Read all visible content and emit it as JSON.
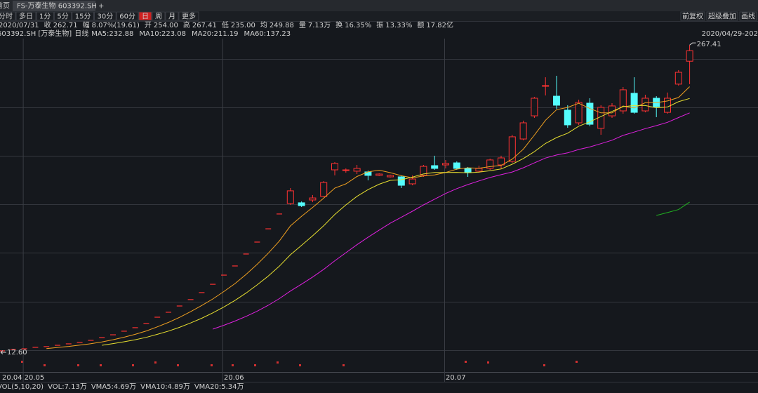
{
  "tabs": {
    "home": "首页",
    "active": "FS-万泰生物 603392.SH",
    "add": "+"
  },
  "periods": [
    {
      "label": "分时",
      "active": false
    },
    {
      "label": "多日",
      "active": false
    },
    {
      "label": "1分",
      "active": false
    },
    {
      "label": "5分",
      "active": false
    },
    {
      "label": "15分",
      "active": false
    },
    {
      "label": "30分",
      "active": false
    },
    {
      "label": "60分",
      "active": false
    },
    {
      "label": "日",
      "active": true
    },
    {
      "label": "周",
      "active": false
    },
    {
      "label": "月",
      "active": false
    },
    {
      "label": "更多",
      "active": false
    }
  ],
  "tools": [
    "前复权",
    "超级叠加",
    "画线"
  ],
  "quote": {
    "date": "2020/07/31",
    "items": [
      {
        "label": "收",
        "value": "262.71",
        "color": "#ff3c3c"
      },
      {
        "label": "幅",
        "value": "8.07%(19.61)",
        "color": "#ff3c3c"
      },
      {
        "label": "开",
        "value": "254.00",
        "color": "#ff3c3c"
      },
      {
        "label": "高",
        "value": "267.41",
        "color": "#ff3c3c"
      },
      {
        "label": "低",
        "value": "235.00",
        "color": "#2ee06a"
      },
      {
        "label": "均",
        "value": "249.88",
        "color": "#ff3c3c"
      },
      {
        "label": "量",
        "value": "7.13万",
        "color": "#e0e0e0"
      },
      {
        "label": "换",
        "value": "16.35%",
        "color": "#e0e0e0"
      },
      {
        "label": "振",
        "value": "13.33%",
        "color": "#e0e0e0"
      },
      {
        "label": "额",
        "value": "17.82亿",
        "color": "#e0e0e0"
      }
    ]
  },
  "chart_data": {
    "type": "candlestick",
    "title": "603392.SH [万泰生物]",
    "period": "日线",
    "date_range": "2020/04/29-202",
    "high_label": "267.41",
    "low_label": "12.60",
    "up_color": "#ff3232",
    "down_color": "#54fcfc",
    "ylim": [
      -3.7,
      272.75
    ],
    "categories": [
      "20.04",
      null,
      "20.05",
      null,
      null,
      null,
      null,
      null,
      null,
      null,
      null,
      null,
      null,
      null,
      null,
      null,
      null,
      null,
      null,
      null,
      "20.06",
      null,
      null,
      null,
      null,
      null,
      null,
      null,
      null,
      null,
      null,
      null,
      null,
      null,
      null,
      null,
      null,
      null,
      null,
      null,
      "20.07",
      null,
      null,
      null,
      null,
      null,
      null,
      null,
      null,
      null,
      null,
      null,
      null,
      null,
      null,
      null,
      null,
      null,
      null,
      null,
      null,
      null,
      null
    ],
    "open": [
      13.8,
      14.9,
      15.5,
      16.7,
      17.3,
      18.4,
      19.6,
      20.8,
      22.5,
      24.8,
      27.1,
      30.1,
      33.0,
      36.5,
      41.7,
      45.8,
      51.0,
      56.3,
      62.1,
      69.0,
      76.6,
      84.2,
      94.1,
      104.0,
      115.0,
      127.3,
      136.0,
      136.6,
      138.9,
      141.8,
      163.9,
      163.6,
      162.8,
      162.2,
      159.3,
      158.1,
      158.1,
      152.3,
      159.3,
      167.4,
      168.0,
      169.7,
      165.1,
      162.8,
      165.1,
      168.0,
      170.9,
      189.5,
      208.7,
      233.2,
      225.0,
      213.4,
      202.9,
      219.2,
      198.3,
      208.7,
      212.8,
      227.4,
      212.8,
      223.3,
      211.6,
      235.0,
      254.0
    ],
    "high": [
      13.8,
      14.9,
      15.5,
      16.7,
      17.3,
      18.4,
      19.6,
      20.8,
      22.5,
      24.8,
      27.1,
      30.1,
      33.0,
      36.5,
      41.7,
      45.8,
      51.0,
      56.3,
      62.1,
      69.0,
      76.6,
      84.2,
      94.1,
      104.0,
      115.0,
      127.3,
      148.8,
      137.7,
      143.0,
      154.6,
      170.3,
      165.1,
      168.0,
      163.3,
      161.0,
      159.9,
      159.3,
      159.3,
      168.0,
      175.6,
      172.1,
      170.9,
      166.3,
      167.4,
      173.2,
      175.6,
      193.0,
      204.7,
      224.4,
      240.7,
      241.9,
      217.5,
      222.1,
      223.3,
      217.5,
      219.2,
      232.6,
      240.7,
      226.2,
      225.0,
      228.0,
      246.6,
      267.41
    ],
    "low": [
      12.6,
      14.9,
      15.5,
      16.7,
      17.3,
      18.4,
      19.6,
      20.8,
      22.5,
      24.8,
      27.1,
      30.1,
      33.0,
      36.5,
      41.7,
      45.8,
      51.0,
      56.3,
      62.1,
      69.0,
      76.6,
      84.2,
      94.1,
      104.0,
      115.0,
      127.3,
      134.8,
      133.1,
      137.1,
      141.2,
      159.3,
      161.6,
      160.4,
      155.2,
      158.7,
      157.5,
      148.8,
      151.1,
      158.1,
      163.9,
      165.1,
      163.9,
      158.1,
      161.6,
      163.9,
      165.1,
      169.7,
      188.4,
      207.0,
      225.6,
      214.5,
      198.8,
      201.2,
      200.0,
      193.0,
      207.0,
      210.5,
      210.5,
      211.6,
      207.6,
      210.5,
      233.8,
      235.0
    ],
    "close": [
      13.8,
      14.9,
      15.5,
      16.7,
      17.3,
      18.4,
      19.6,
      20.8,
      22.5,
      24.8,
      27.1,
      30.1,
      33.0,
      36.5,
      41.7,
      45.8,
      51.0,
      56.3,
      62.1,
      69.0,
      76.6,
      84.2,
      94.1,
      104.0,
      115.0,
      127.3,
      146.5,
      134.2,
      140.6,
      153.4,
      169.2,
      163.9,
      165.1,
      159.3,
      160.4,
      159.3,
      151.1,
      156.3,
      166.8,
      165.1,
      169.2,
      165.1,
      161.6,
      165.1,
      172.1,
      173.8,
      191.3,
      202.9,
      223.3,
      233.8,
      217.5,
      201.2,
      219.8,
      201.7,
      215.7,
      216.9,
      230.3,
      211.6,
      223.3,
      216.3,
      223.3,
      244.8,
      262.71
    ],
    "series": [
      {
        "name": "MA5:232.88",
        "color": "#f0a020",
        "values": [
          null,
          null,
          null,
          null,
          15.6,
          16.6,
          17.5,
          18.6,
          19.7,
          21.2,
          23.0,
          25.1,
          27.5,
          30.3,
          33.7,
          37.4,
          41.6,
          46.3,
          51.4,
          56.8,
          63.0,
          69.6,
          77.2,
          85.6,
          94.8,
          104.9,
          117.4,
          125.4,
          132.7,
          140.4,
          148.8,
          152.3,
          158.4,
          162.2,
          163.6,
          161.6,
          159.0,
          157.3,
          158.8,
          159.7,
          161.7,
          164.5,
          165.6,
          165.2,
          166.6,
          167.5,
          172.8,
          181.0,
          192.7,
          205.0,
          213.8,
          215.7,
          219.1,
          214.8,
          211.2,
          211.1,
          216.9,
          215.2,
          219.6,
          219.7,
          221.0,
          223.9,
          232.88
        ]
      },
      {
        "name": "MA10:223.08",
        "color": "#e8e030",
        "values": [
          null,
          null,
          null,
          null,
          null,
          null,
          null,
          null,
          null,
          18.4,
          19.8,
          21.3,
          23.0,
          25.0,
          27.5,
          30.2,
          33.3,
          36.9,
          40.8,
          45.3,
          50.2,
          55.6,
          61.7,
          68.5,
          75.8,
          84.0,
          93.5,
          101.3,
          109.2,
          117.6,
          126.9,
          134.8,
          141.9,
          147.5,
          152.0,
          155.2,
          155.7,
          157.9,
          160.5,
          161.7,
          161.7,
          161.8,
          161.4,
          162.0,
          163.2,
          164.6,
          168.6,
          173.3,
          179.0,
          185.8,
          190.7,
          194.3,
          200.1,
          203.7,
          208.1,
          212.4,
          216.3,
          217.2,
          217.2,
          215.4,
          216.0,
          220.4,
          223.08
        ]
      },
      {
        "name": "MA20:211.19",
        "color": "#e020e0",
        "values": [
          null,
          null,
          null,
          null,
          null,
          null,
          null,
          null,
          null,
          null,
          null,
          null,
          null,
          null,
          null,
          null,
          null,
          null,
          null,
          31.8,
          35.0,
          38.5,
          42.4,
          46.7,
          51.6,
          57.1,
          63.4,
          69.1,
          75.0,
          81.4,
          88.5,
          95.2,
          101.8,
          108.0,
          113.9,
          119.6,
          124.6,
          129.6,
          134.8,
          139.6,
          144.3,
          148.3,
          151.7,
          154.7,
          157.6,
          159.9,
          162.1,
          165.6,
          169.7,
          173.7,
          176.2,
          178.0,
          180.8,
          182.9,
          185.6,
          188.5,
          192.5,
          195.2,
          198.1,
          200.6,
          203.3,
          207.3,
          211.19
        ]
      },
      {
        "name": "MA60:137.23",
        "color": "#20b020",
        "values": [
          null,
          null,
          null,
          null,
          null,
          null,
          null,
          null,
          null,
          null,
          null,
          null,
          null,
          null,
          null,
          null,
          null,
          null,
          null,
          null,
          null,
          null,
          null,
          null,
          null,
          null,
          null,
          null,
          null,
          null,
          null,
          null,
          null,
          null,
          null,
          null,
          null,
          null,
          null,
          null,
          null,
          null,
          null,
          null,
          null,
          null,
          null,
          null,
          null,
          null,
          null,
          null,
          null,
          null,
          null,
          null,
          null,
          null,
          null,
          126.1,
          128.5,
          131.0,
          137.23
        ]
      }
    ]
  },
  "volume": {
    "items": [
      {
        "text": "VOL(5,10,20)",
        "color": "#c8c8c8"
      },
      {
        "text": "VOL:7.13万",
        "color": "#e0e0e0"
      },
      {
        "text": "VMA5:4.69万",
        "color": "#e0e0e0"
      },
      {
        "text": "VMA10:4.89万",
        "color": "#e8e030"
      },
      {
        "text": "VMA20:5.34万",
        "color": "#e020e0"
      }
    ]
  }
}
